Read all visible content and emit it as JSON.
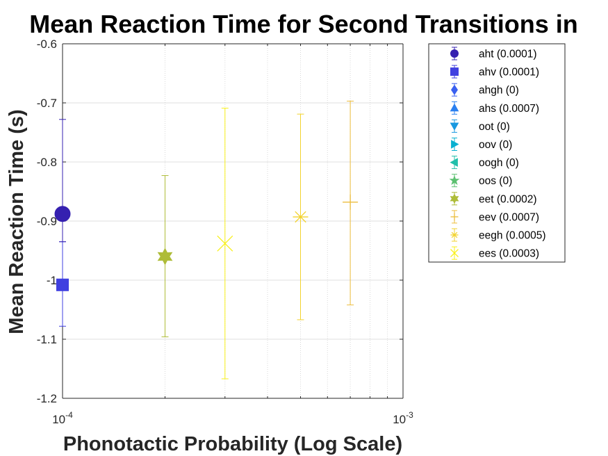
{
  "chart_data": {
    "type": "scatter",
    "title": "Mean Reaction Time for Second Transitions in",
    "xlabel": "Phonotactic Probability (Log Scale)",
    "ylabel": "Mean Reaction Time (s)",
    "xscale": "log",
    "xlim": [
      0.0001,
      0.001
    ],
    "ylim": [
      -1.2,
      -0.6
    ],
    "xticks": [
      0.0001,
      0.001
    ],
    "xtick_labels": [
      {
        "base": "10",
        "exp": "-4"
      },
      {
        "base": "10",
        "exp": "-3"
      }
    ],
    "yticks": [
      -1.2,
      -1.1,
      -1.0,
      -0.9,
      -0.8,
      -0.7,
      -0.6
    ],
    "ytick_labels": [
      "-1.2",
      "-1.1",
      "-1",
      "-0.9",
      "-0.8",
      "-0.7",
      "-0.6"
    ],
    "grid": true,
    "legend_position": "outside-right",
    "series": [
      {
        "name": "aht (0.0001)",
        "marker": "circle",
        "color": "#3520b0",
        "x": 0.0001,
        "y": -0.888,
        "err_low": -0.935,
        "err_high": -0.728
      },
      {
        "name": "ahv (0.0001)",
        "marker": "square",
        "color": "#4040e0",
        "x": 0.0001,
        "y": -1.008,
        "err_low": -1.078,
        "err_high": -0.935
      },
      {
        "name": "ahgh (0)",
        "marker": "diamond",
        "color": "#3a60f0",
        "x": null,
        "y": null,
        "err_low": null,
        "err_high": null
      },
      {
        "name": "ahs (0.0007)",
        "marker": "triangle-up",
        "color": "#2a80f0",
        "x": null,
        "y": null,
        "err_low": null,
        "err_high": null
      },
      {
        "name": "oot (0)",
        "marker": "triangle-down",
        "color": "#1898e0",
        "x": null,
        "y": null,
        "err_low": null,
        "err_high": null
      },
      {
        "name": "oov (0)",
        "marker": "triangle-right",
        "color": "#08b0d0",
        "x": null,
        "y": null,
        "err_low": null,
        "err_high": null
      },
      {
        "name": "oogh (0)",
        "marker": "triangle-left",
        "color": "#20bfaa",
        "x": null,
        "y": null,
        "err_low": null,
        "err_high": null
      },
      {
        "name": "oos (0)",
        "marker": "pentagram",
        "color": "#5cc070",
        "x": null,
        "y": null,
        "err_low": null,
        "err_high": null
      },
      {
        "name": "eet (0.0002)",
        "marker": "hexagram",
        "color": "#aebc38",
        "x": 0.0002,
        "y": -0.96,
        "err_low": -1.096,
        "err_high": -0.823
      },
      {
        "name": "eev (0.0007)",
        "marker": "plus",
        "color": "#ecbc3c",
        "x": 0.0007,
        "y": -0.868,
        "err_low": -1.042,
        "err_high": -0.697
      },
      {
        "name": "eegh (0.0005)",
        "marker": "asterisk",
        "color": "#f2d22c",
        "x": 0.0005,
        "y": -0.893,
        "err_low": -1.067,
        "err_high": -0.719
      },
      {
        "name": "ees (0.0003)",
        "marker": "cross",
        "color": "#f8f018",
        "x": 0.0003,
        "y": -0.938,
        "err_low": -1.167,
        "err_high": -0.709
      }
    ]
  }
}
